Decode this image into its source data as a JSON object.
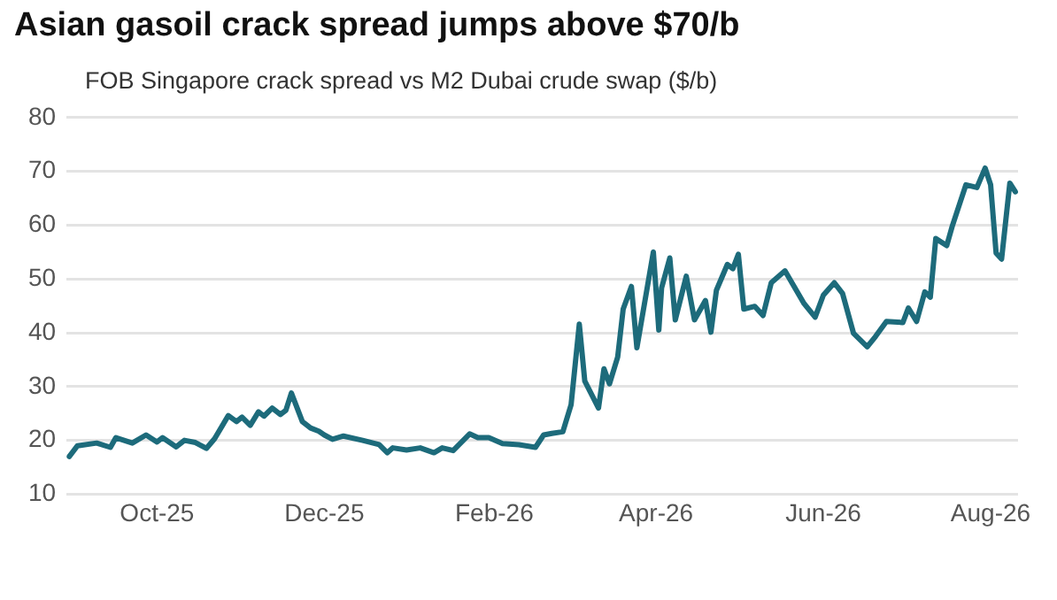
{
  "chart_data": {
    "type": "line",
    "title": "Asian gasoil crack spread jumps above $70/b",
    "subtitle": "FOB Singapore crack spread vs M2 Dubai crude swap ($/b)",
    "x": [
      "2025-08-30",
      "2025-09-02",
      "2025-09-09",
      "2025-09-14",
      "2025-09-16",
      "2025-09-22",
      "2025-09-27",
      "2025-10-01",
      "2025-10-03",
      "2025-10-08",
      "2025-10-11",
      "2025-10-15",
      "2025-10-19",
      "2025-10-22",
      "2025-10-27",
      "2025-10-30",
      "2025-11-01",
      "2025-11-04",
      "2025-11-07",
      "2025-11-09",
      "2025-11-12",
      "2025-11-15",
      "2025-11-17",
      "2025-11-19",
      "2025-11-23",
      "2025-11-26",
      "2025-11-29",
      "2025-12-01",
      "2025-12-04",
      "2025-12-08",
      "2025-12-15",
      "2025-12-21",
      "2025-12-24",
      "2025-12-26",
      "2025-12-31",
      "2026-01-05",
      "2026-01-10",
      "2026-01-13",
      "2026-01-17",
      "2026-01-23",
      "2026-01-26",
      "2026-01-30",
      "2026-02-04",
      "2026-02-10",
      "2026-02-16",
      "2026-02-19",
      "2026-02-22",
      "2026-02-26",
      "2026-03-01",
      "2026-03-04",
      "2026-03-06",
      "2026-03-11",
      "2026-03-13",
      "2026-03-15",
      "2026-03-18",
      "2026-03-20",
      "2026-03-23",
      "2026-03-25",
      "2026-03-31",
      "2026-04-02",
      "2026-04-03",
      "2026-04-06",
      "2026-04-08",
      "2026-04-12",
      "2026-04-15",
      "2026-04-19",
      "2026-04-21",
      "2026-04-23",
      "2026-04-27",
      "2026-04-29",
      "2026-05-01",
      "2026-05-03",
      "2026-05-07",
      "2026-05-10",
      "2026-05-13",
      "2026-05-18",
      "2026-05-25",
      "2026-05-29",
      "2026-06-01",
      "2026-06-05",
      "2026-06-08",
      "2026-06-12",
      "2026-06-17",
      "2026-06-20",
      "2026-06-24",
      "2026-06-30",
      "2026-07-02",
      "2026-07-05",
      "2026-07-08",
      "2026-07-10",
      "2026-07-12",
      "2026-07-16",
      "2026-07-18",
      "2026-07-23",
      "2026-07-27",
      "2026-07-30",
      "2026-08-01",
      "2026-08-03",
      "2026-08-05",
      "2026-08-08",
      "2026-08-10"
    ],
    "series": [
      {
        "color": "#1d6b7b",
        "values": [
          17,
          19,
          19.5,
          18.7,
          20.5,
          19.5,
          21,
          19.7,
          20.5,
          18.8,
          20,
          19.6,
          18.5,
          20.3,
          24.6,
          23.5,
          24.3,
          22.8,
          25.3,
          24.5,
          26,
          24.8,
          25.6,
          28.8,
          23.5,
          22.3,
          21.7,
          21,
          20.2,
          20.8,
          20,
          19.2,
          17.7,
          18.6,
          18.2,
          18.6,
          17.7,
          18.6,
          18.1,
          21.2,
          20.5,
          20.5,
          19.4,
          19.2,
          18.7,
          21,
          21.3,
          21.6,
          26.6,
          41.6,
          31,
          26,
          33.3,
          30.5,
          35.5,
          44.4,
          48.6,
          37.2,
          55,
          40.5,
          48.3,
          53.9,
          42.4,
          50.5,
          42.4,
          46,
          40.1,
          47.9,
          52.7,
          51.9,
          54.6,
          44.4,
          44.9,
          43.2,
          49.3,
          51.5,
          45.4,
          42.9,
          47,
          49.3,
          47.3,
          39.9,
          37.4,
          39.3,
          42.1,
          41.9,
          44.6,
          42.1,
          47.6,
          46.6,
          57.5,
          56.2,
          59.8,
          67.5,
          67,
          70.6,
          67.5,
          54.8,
          53.7,
          67.8,
          66.2
        ]
      }
    ],
    "xlim": [
      "2025-08-29",
      "2026-08-11"
    ],
    "xticks": [
      {
        "value": "2025-10-01",
        "label": "Oct-25"
      },
      {
        "value": "2025-12-01",
        "label": "Dec-25"
      },
      {
        "value": "2026-02-01",
        "label": "Feb-26"
      },
      {
        "value": "2026-04-01",
        "label": "Apr-26"
      },
      {
        "value": "2026-06-01",
        "label": "Jun-26"
      },
      {
        "value": "2026-08-01",
        "label": "Aug-26"
      }
    ],
    "ylim": [
      10,
      80
    ],
    "yticks": [
      10,
      20,
      30,
      40,
      50,
      60,
      70,
      80
    ],
    "grid": "y",
    "legend": false,
    "marker": "none",
    "line_style": "solid"
  }
}
